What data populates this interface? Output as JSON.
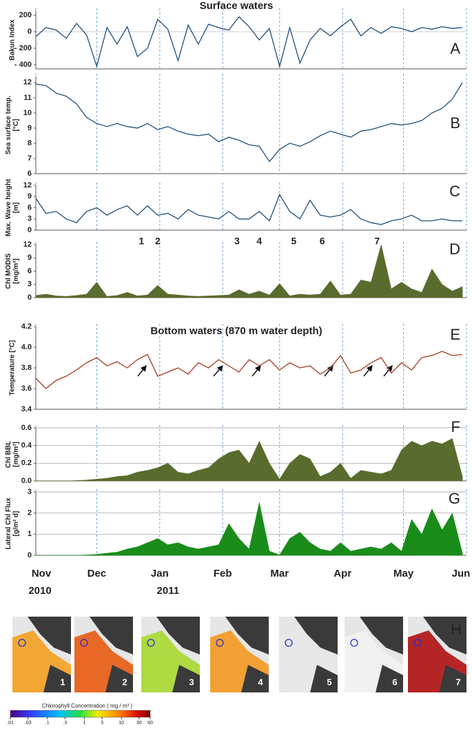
{
  "chart_data": [
    {
      "type": "line",
      "title": "Surface waters",
      "panel": "A",
      "ylabel": [
        "Bakun Index"
      ],
      "color": "#1f4e79",
      "grid": false,
      "xlim": [
        0,
        212
      ],
      "ylim": [
        -450,
        250
      ],
      "yticks": [
        200,
        0,
        {
          "value": -200,
          "label": "- 200"
        },
        {
          "value": -400,
          "label": "- 400"
        }
      ],
      "x": [
        0,
        5,
        10,
        15,
        20,
        25,
        30,
        35,
        40,
        45,
        50,
        55,
        60,
        65,
        70,
        75,
        80,
        85,
        90,
        95,
        100,
        105,
        110,
        115,
        120,
        125,
        130,
        135,
        140,
        145,
        150,
        155,
        160,
        165,
        170,
        175,
        180,
        185,
        190,
        195,
        200,
        205,
        210
      ],
      "values": [
        -60,
        50,
        20,
        -80,
        100,
        -40,
        -420,
        50,
        -150,
        60,
        -300,
        -200,
        150,
        30,
        -350,
        80,
        -150,
        90,
        50,
        20,
        180,
        60,
        -100,
        40,
        -420,
        50,
        -380,
        -100,
        40,
        -50,
        60,
        150,
        -50,
        50,
        -20,
        60,
        40,
        0,
        50,
        30,
        60,
        40,
        50
      ]
    },
    {
      "type": "line",
      "panel": "B",
      "ylabel": [
        "Sea surface temp.",
        "[°C]"
      ],
      "color": "#1f4e79",
      "grid": false,
      "xlim": [
        0,
        212
      ],
      "ylim": [
        6,
        12.4
      ],
      "yticks": [
        6,
        7,
        8,
        9,
        10,
        11,
        12
      ],
      "x": [
        0,
        5,
        10,
        15,
        20,
        25,
        30,
        35,
        40,
        45,
        50,
        55,
        60,
        65,
        70,
        75,
        80,
        85,
        90,
        95,
        100,
        105,
        110,
        115,
        120,
        125,
        130,
        135,
        140,
        145,
        150,
        155,
        160,
        165,
        170,
        175,
        180,
        185,
        190,
        195,
        200,
        205,
        210
      ],
      "values": [
        11.9,
        11.8,
        11.3,
        11.1,
        10.6,
        9.7,
        9.3,
        9.1,
        9.3,
        9.1,
        9.0,
        9.3,
        8.9,
        9.1,
        8.8,
        8.6,
        8.5,
        8.6,
        8.1,
        8.4,
        8.2,
        7.9,
        7.8,
        6.8,
        7.6,
        8.0,
        7.8,
        8.1,
        8.5,
        8.8,
        8.6,
        8.4,
        8.8,
        8.9,
        9.1,
        9.3,
        9.2,
        9.3,
        9.5,
        10.0,
        10.3,
        10.9,
        12.0
      ]
    },
    {
      "type": "line",
      "panel": "C",
      "ylabel": [
        "Max. Wave height",
        "[m]"
      ],
      "color": "#1f4e79",
      "grid": false,
      "xlim": [
        0,
        212
      ],
      "ylim": [
        0,
        12
      ],
      "yticks": [
        0,
        3,
        6,
        9,
        12
      ],
      "x": [
        0,
        5,
        10,
        15,
        20,
        25,
        30,
        35,
        40,
        45,
        50,
        55,
        60,
        65,
        70,
        75,
        80,
        85,
        90,
        95,
        100,
        105,
        110,
        115,
        120,
        125,
        130,
        135,
        140,
        145,
        150,
        155,
        160,
        165,
        170,
        175,
        180,
        185,
        190,
        195,
        200,
        205,
        210
      ],
      "values": [
        8.5,
        4.5,
        5,
        3,
        2,
        5,
        6,
        4,
        5.5,
        6.5,
        4,
        6.5,
        4,
        4.5,
        3,
        5.5,
        4,
        3.5,
        3,
        5,
        3,
        3,
        5,
        2.5,
        9.5,
        5,
        3,
        8,
        4,
        3.5,
        4,
        5.5,
        3,
        2,
        1.5,
        2.5,
        3,
        4,
        2.5,
        2.5,
        3,
        2.5,
        2.5
      ]
    },
    {
      "type": "area",
      "panel": "D",
      "ylabel": [
        "Chl MODIS",
        "[mg/m³]"
      ],
      "color": "#5a6b2e",
      "grid": false,
      "xlim": [
        0,
        212
      ],
      "ylim": [
        0,
        12
      ],
      "yticks": [
        0,
        3,
        6,
        9,
        12
      ],
      "annotations": [
        {
          "text": "1",
          "x": 52
        },
        {
          "text": "2",
          "x": 60
        },
        {
          "text": "3",
          "x": 99
        },
        {
          "text": "4",
          "x": 110
        },
        {
          "text": "5",
          "x": 127
        },
        {
          "text": "6",
          "x": 141
        },
        {
          "text": "7",
          "x": 168
        }
      ],
      "x": [
        0,
        5,
        10,
        15,
        20,
        25,
        30,
        35,
        40,
        45,
        50,
        55,
        60,
        65,
        70,
        75,
        80,
        85,
        90,
        95,
        100,
        105,
        110,
        115,
        120,
        125,
        130,
        135,
        140,
        145,
        150,
        155,
        160,
        165,
        170,
        175,
        180,
        185,
        190,
        195,
        200,
        205,
        210
      ],
      "values": [
        0.5,
        0.8,
        0.4,
        0.3,
        0.5,
        0.8,
        3.5,
        0.3,
        0.5,
        1.2,
        0.4,
        0.6,
        2.8,
        0.8,
        0.6,
        0.4,
        0.3,
        0.4,
        0.5,
        0.6,
        1.8,
        0.8,
        1.5,
        0.6,
        3.2,
        0.4,
        0.8,
        0.6,
        0.8,
        3.8,
        0.6,
        0.8,
        4.0,
        3.5,
        12.0,
        2.0,
        3.5,
        2.0,
        1.2,
        6.5,
        3.0,
        1.5,
        2.5
      ]
    },
    {
      "type": "line",
      "title": "Bottom waters (870 m water depth)",
      "panel": "E",
      "ylabel": [
        "Temperature [°C]"
      ],
      "color": "#a33a1f",
      "grid": false,
      "xlim": [
        0,
        212
      ],
      "ylim": [
        3.4,
        4.2
      ],
      "yticks": [
        3.4,
        3.6,
        3.8,
        {
          "value": 4,
          "label": "4.0"
        },
        4.2
      ],
      "x": [
        0,
        5,
        10,
        15,
        20,
        25,
        30,
        35,
        40,
        45,
        50,
        55,
        60,
        65,
        70,
        75,
        80,
        85,
        90,
        95,
        100,
        105,
        110,
        115,
        120,
        125,
        130,
        135,
        140,
        145,
        150,
        155,
        160,
        165,
        170,
        175,
        180,
        185,
        190,
        195,
        200,
        205,
        210
      ],
      "values": [
        3.7,
        3.6,
        3.68,
        3.72,
        3.78,
        3.85,
        3.9,
        3.82,
        3.86,
        3.8,
        3.88,
        3.93,
        3.72,
        3.76,
        3.8,
        3.74,
        3.85,
        3.8,
        3.88,
        3.82,
        3.76,
        3.88,
        3.82,
        3.88,
        3.78,
        3.85,
        3.8,
        3.82,
        3.74,
        3.8,
        3.92,
        3.75,
        3.78,
        3.85,
        3.9,
        3.75,
        3.85,
        3.78,
        3.9,
        3.92,
        3.96,
        3.92,
        3.93
      ]
    },
    {
      "type": "area",
      "panel": "F",
      "ylabel": [
        "Chl BBL",
        "[mg/m³]"
      ],
      "color": "#5a6b2e",
      "grid": true,
      "xlim": [
        0,
        212
      ],
      "ylim": [
        0,
        0.6
      ],
      "yticks": [
        {
          "value": 0,
          "label": "0.0"
        },
        0.2,
        0.4,
        0.6
      ],
      "x": [
        0,
        5,
        10,
        15,
        20,
        25,
        30,
        35,
        40,
        45,
        50,
        55,
        60,
        65,
        70,
        75,
        80,
        85,
        90,
        95,
        100,
        105,
        110,
        115,
        120,
        125,
        130,
        135,
        140,
        145,
        150,
        155,
        160,
        165,
        170,
        175,
        180,
        185,
        190,
        195,
        200,
        205,
        210
      ],
      "values": [
        0,
        0,
        0,
        0,
        0.005,
        0.01,
        0.02,
        0.03,
        0.05,
        0.06,
        0.1,
        0.12,
        0.15,
        0.2,
        0.1,
        0.08,
        0.12,
        0.15,
        0.25,
        0.32,
        0.35,
        0.2,
        0.45,
        0.2,
        0.02,
        0.2,
        0.3,
        0.25,
        0.05,
        0.1,
        0.2,
        0.03,
        0.12,
        0.1,
        0.08,
        0.12,
        0.35,
        0.45,
        0.4,
        0.45,
        0.42,
        0.48,
        0.05
      ]
    },
    {
      "type": "area",
      "panel": "G",
      "ylabel": [
        "Lateral Chl Flux",
        "[g/m² d]"
      ],
      "color": "#1a8c1a",
      "grid": true,
      "xlim": [
        0,
        212
      ],
      "ylim": [
        0,
        3
      ],
      "yticks": [
        0,
        1,
        2,
        3
      ],
      "xticks": [
        {
          "value": 0,
          "label": "Nov"
        },
        {
          "value": 30,
          "label": "Dec"
        },
        {
          "value": 61,
          "label": "Jan"
        },
        {
          "value": 92,
          "label": "Feb"
        },
        {
          "value": 120,
          "label": "Mar"
        },
        {
          "value": 151,
          "label": "Apr"
        },
        {
          "value": 181,
          "label": "May"
        },
        {
          "value": 212,
          "label": "Jun"
        }
      ],
      "year_labels": [
        {
          "value": 0,
          "label": "2010"
        },
        {
          "value": 61,
          "label": "2011"
        }
      ],
      "x": [
        0,
        5,
        10,
        15,
        20,
        25,
        30,
        35,
        40,
        45,
        50,
        55,
        60,
        65,
        70,
        75,
        80,
        85,
        90,
        95,
        100,
        105,
        110,
        115,
        120,
        125,
        130,
        135,
        140,
        145,
        150,
        155,
        160,
        165,
        170,
        175,
        180,
        185,
        190,
        195,
        200,
        205,
        210
      ],
      "values": [
        0,
        0,
        0,
        0,
        0,
        0.02,
        0.05,
        0.1,
        0.15,
        0.3,
        0.4,
        0.6,
        0.8,
        0.5,
        0.6,
        0.4,
        0.3,
        0.4,
        0.5,
        1.5,
        0.8,
        0.3,
        2.5,
        0.2,
        0.02,
        0.8,
        1.1,
        0.6,
        0.3,
        0.2,
        0.6,
        0.2,
        0.3,
        0.4,
        0.3,
        0.6,
        0.2,
        1.7,
        1.0,
        2.2,
        1.2,
        2.0,
        0.1
      ]
    }
  ],
  "satellite_images": {
    "panel": "H",
    "labels": [
      "1",
      "2",
      "3",
      "4",
      "5",
      "6",
      "7"
    ]
  },
  "colorbar": {
    "title": "Chlorophyll Concentration ( mg / m³ )",
    "ticks": [
      {
        "value": 0.01,
        "label": ".01"
      },
      {
        "value": 0.03,
        "label": ".03"
      },
      {
        "value": 0.1,
        "label": ".1"
      },
      {
        "value": 0.3,
        "label": ".3"
      },
      1,
      3,
      10,
      30,
      60
    ]
  }
}
